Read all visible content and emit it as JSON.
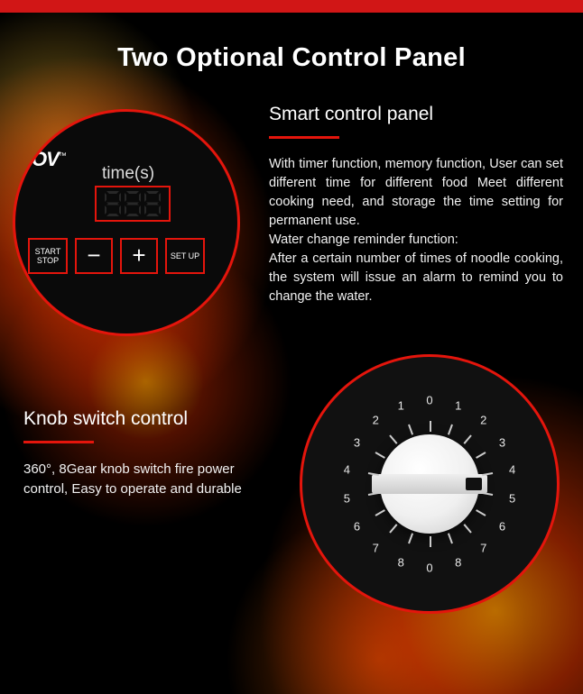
{
  "colors": {
    "accent": "#e4150c",
    "topbar": "#d11616",
    "background": "#000000",
    "text": "#ffffff"
  },
  "title": "Two Optional Control Panel",
  "smart_panel": {
    "heading": "Smart control panel",
    "body": "With timer function, memory function, User can set different time for different food Meet different cooking need, and storage the time setting for permanent use.\nWater change reminder function:\nAfter a certain number of times of noodle cooking, the system will issue an alarm to remind you to change the water.",
    "brand": "OV",
    "brand_tm": "™",
    "time_label": "time(s)",
    "display_value": "888",
    "buttons": {
      "start_stop": "START\nSTOP",
      "minus": "−",
      "plus": "+",
      "setup": "SET UP"
    }
  },
  "knob_panel": {
    "heading": "Knob switch control",
    "body": "360°, 8Gear knob switch fire power control, Easy to operate and durable",
    "dial": {
      "gear_sequence": [
        0,
        1,
        2,
        3,
        4,
        5,
        6,
        7,
        8,
        0,
        8,
        7,
        6,
        5,
        4,
        3,
        2,
        1
      ],
      "tick_count": 18,
      "tick_color": "#cccccc",
      "number_color": "#e8e8e8",
      "number_fontsize": 13,
      "tick_radius": 70,
      "label_radius": 93,
      "knob_color": "#f0f0f0",
      "pointer_angle_deg": 90
    }
  }
}
